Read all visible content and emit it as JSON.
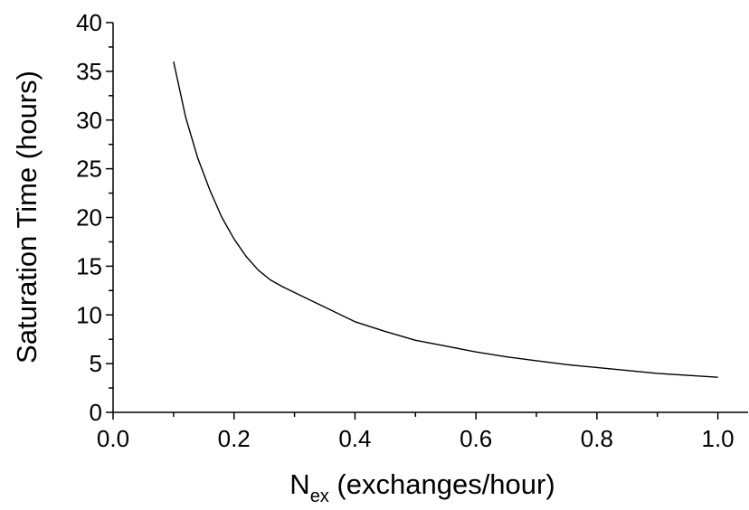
{
  "chart_data": {
    "type": "line",
    "title": "",
    "xlabel": {
      "main": "N",
      "subscript": "ex",
      "rest": " (exchanges/hour)"
    },
    "ylabel": "Saturation Time (hours)",
    "xlim": [
      0.0,
      1.05
    ],
    "ylim": [
      0,
      40
    ],
    "x_ticks": [
      "0.0",
      "0.2",
      "0.4",
      "0.6",
      "0.8",
      "1.0"
    ],
    "y_ticks": [
      "0",
      "5",
      "10",
      "15",
      "20",
      "25",
      "30",
      "35",
      "40"
    ],
    "grid": false,
    "legend": "none",
    "line_color": "#000000",
    "series": [
      {
        "x": [
          0.1,
          0.12,
          0.14,
          0.16,
          0.18,
          0.2,
          0.22,
          0.24,
          0.26,
          0.28,
          0.3,
          0.35,
          0.4,
          0.45,
          0.5,
          0.55,
          0.6,
          0.65,
          0.7,
          0.75,
          0.8,
          0.85,
          0.9,
          0.95,
          1.0
        ],
        "y": [
          36.0,
          30.3,
          26.1,
          22.8,
          20.0,
          17.8,
          16.0,
          14.6,
          13.6,
          12.9,
          12.3,
          10.8,
          9.3,
          8.3,
          7.4,
          6.8,
          6.2,
          5.7,
          5.3,
          4.9,
          4.6,
          4.3,
          4.0,
          3.8,
          3.6
        ]
      }
    ]
  }
}
